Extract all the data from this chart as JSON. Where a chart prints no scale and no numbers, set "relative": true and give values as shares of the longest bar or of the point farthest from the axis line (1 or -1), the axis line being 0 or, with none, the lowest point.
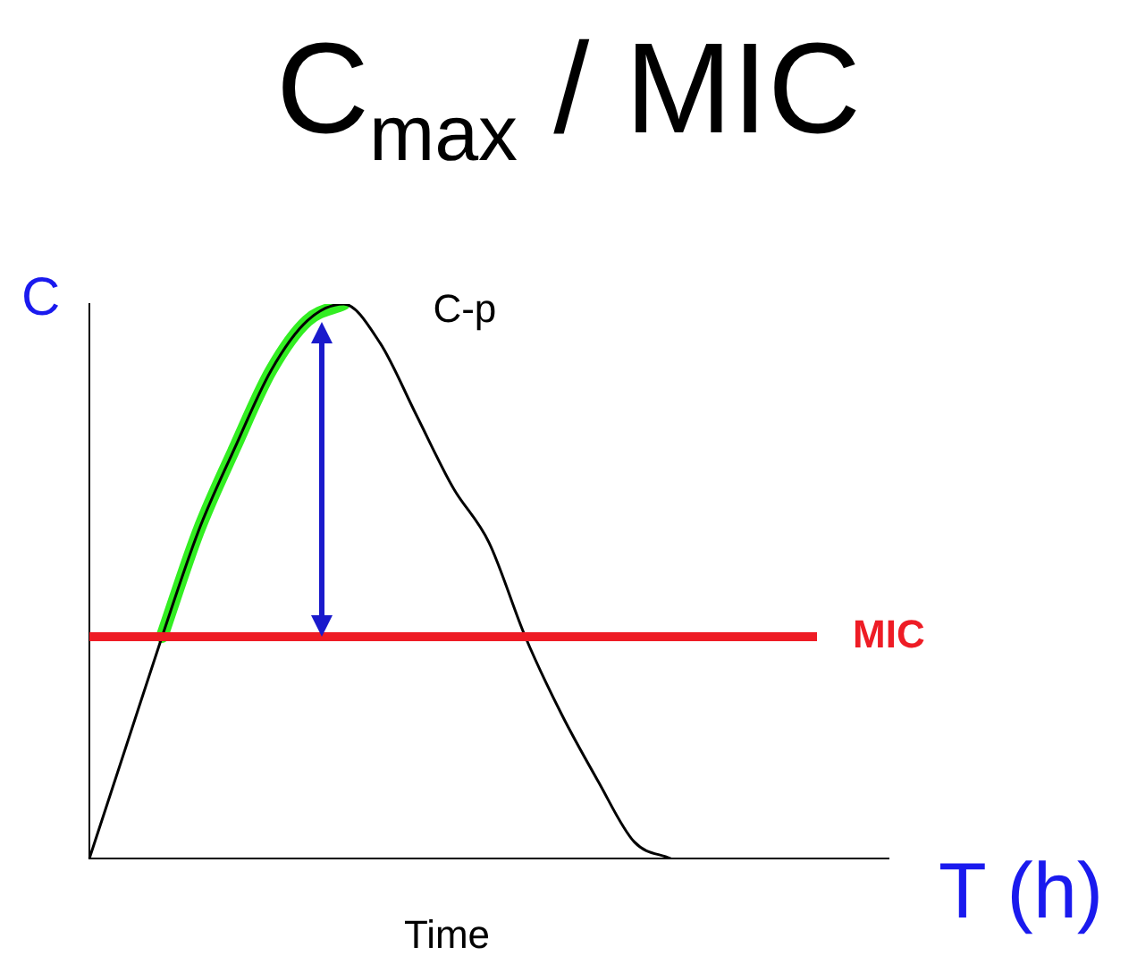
{
  "chart_data": {
    "type": "line",
    "title": "C$_{max}$ / MIC",
    "xlabel": "Time",
    "ylabel": "C",
    "relative": true,
    "marker": "none",
    "legend": false,
    "grid": false,
    "categories": [
      null,
      null,
      null,
      null,
      null,
      null,
      null,
      null,
      null,
      null,
      null,
      null,
      null,
      null,
      null,
      null,
      null,
      null,
      null,
      null,
      null,
      null,
      null
    ],
    "series": [
      {
        "color": "#000000",
        "values": [
          0,
          0.2,
          0.4,
          0.59,
          0.74,
          0.88,
          0.97,
          1,
          0.93,
          0.8,
          0.67,
          0.57,
          0.4,
          0.26,
          0.14,
          0.03,
          0,
          null,
          null,
          null,
          null,
          null,
          null
        ]
      },
      {
        "color": "#33ee22",
        "values": [
          null,
          null,
          0.4,
          0.59,
          0.74,
          0.88,
          0.97,
          1,
          null,
          null,
          null,
          null,
          null,
          null,
          null,
          null,
          null,
          null,
          null,
          null,
          null,
          null,
          null
        ]
      }
    ],
    "ref_lines": [
      {
        "axis": "y",
        "value": 0.4,
        "label": "MIC",
        "color": "#ee1c25"
      }
    ],
    "annotations": [
      "C-p",
      "T (h)"
    ]
  }
}
